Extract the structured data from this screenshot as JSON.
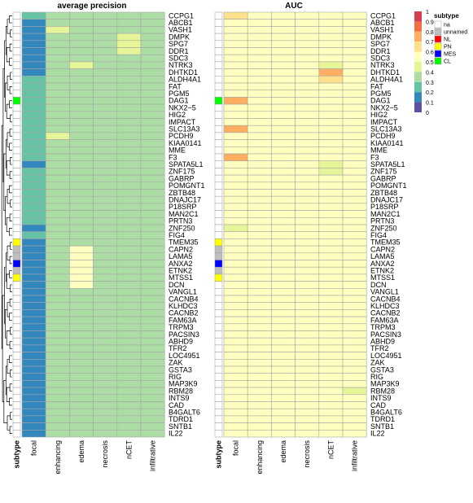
{
  "chart_data": {
    "type": "heatmap",
    "panels": [
      {
        "title": "average precision",
        "columns": [
          "focal",
          "enhancing",
          "edema",
          "necrosis",
          "nCET",
          "infiltrative"
        ],
        "values": [
          [
            0.25,
            0.38,
            0.38,
            0.38,
            0.38,
            0.38
          ],
          [
            0.1,
            0.38,
            0.38,
            0.38,
            0.38,
            0.38
          ],
          [
            0.1,
            0.42,
            0.38,
            0.38,
            0.38,
            0.38
          ],
          [
            0.1,
            0.38,
            0.38,
            0.38,
            0.42,
            0.38
          ],
          [
            0.1,
            0.38,
            0.38,
            0.38,
            0.45,
            0.38
          ],
          [
            0.1,
            0.38,
            0.38,
            0.38,
            0.42,
            0.38
          ],
          [
            0.1,
            0.38,
            0.38,
            0.38,
            0.38,
            0.38
          ],
          [
            0.1,
            0.38,
            0.45,
            0.32,
            0.38,
            0.38
          ],
          [
            0.1,
            0.32,
            0.38,
            0.38,
            0.38,
            0.38
          ],
          [
            0.25,
            0.38,
            0.38,
            0.38,
            0.38,
            0.38
          ],
          [
            0.25,
            0.38,
            0.38,
            0.38,
            0.38,
            0.38
          ],
          [
            0.25,
            0.38,
            0.38,
            0.38,
            0.38,
            0.38
          ],
          [
            0.25,
            0.38,
            0.38,
            0.38,
            0.38,
            0.38
          ],
          [
            0.25,
            0.38,
            0.38,
            0.38,
            0.38,
            0.38
          ],
          [
            0.25,
            0.38,
            0.38,
            0.38,
            0.38,
            0.38
          ],
          [
            0.25,
            0.38,
            0.38,
            0.38,
            0.38,
            0.38
          ],
          [
            0.25,
            0.38,
            0.38,
            0.38,
            0.38,
            0.38
          ],
          [
            0.25,
            0.42,
            0.38,
            0.38,
            0.38,
            0.38
          ],
          [
            0.25,
            0.38,
            0.38,
            0.38,
            0.38,
            0.38
          ],
          [
            0.25,
            0.38,
            0.38,
            0.38,
            0.38,
            0.38
          ],
          [
            0.25,
            0.38,
            0.38,
            0.38,
            0.38,
            0.38
          ],
          [
            0.1,
            0.38,
            0.38,
            0.38,
            0.38,
            0.38
          ],
          [
            0.25,
            0.38,
            0.38,
            0.38,
            0.38,
            0.38
          ],
          [
            0.25,
            0.38,
            0.38,
            0.38,
            0.38,
            0.38
          ],
          [
            0.25,
            0.38,
            0.38,
            0.38,
            0.38,
            0.38
          ],
          [
            0.25,
            0.38,
            0.38,
            0.38,
            0.38,
            0.38
          ],
          [
            0.25,
            0.38,
            0.38,
            0.38,
            0.38,
            0.38
          ],
          [
            0.25,
            0.38,
            0.38,
            0.38,
            0.38,
            0.38
          ],
          [
            0.25,
            0.38,
            0.38,
            0.38,
            0.38,
            0.38
          ],
          [
            0.25,
            0.38,
            0.38,
            0.32,
            0.38,
            0.38
          ],
          [
            0.1,
            0.38,
            0.38,
            0.38,
            0.38,
            0.38
          ],
          [
            0.25,
            0.38,
            0.38,
            0.38,
            0.38,
            0.38
          ],
          [
            0.1,
            0.38,
            0.38,
            0.32,
            0.38,
            0.38
          ],
          [
            0.1,
            0.38,
            0.52,
            0.38,
            0.38,
            0.38
          ],
          [
            0.1,
            0.38,
            0.52,
            0.32,
            0.38,
            0.38
          ],
          [
            0.1,
            0.38,
            0.52,
            0.38,
            0.38,
            0.38
          ],
          [
            0.1,
            0.38,
            0.52,
            0.38,
            0.38,
            0.38
          ],
          [
            0.1,
            0.38,
            0.52,
            0.38,
            0.38,
            0.38
          ],
          [
            0.1,
            0.38,
            0.52,
            0.38,
            0.38,
            0.38
          ],
          [
            0.1,
            0.38,
            0.38,
            0.38,
            0.38,
            0.38
          ],
          [
            0.1,
            0.38,
            0.38,
            0.38,
            0.38,
            0.38
          ],
          [
            0.1,
            0.38,
            0.38,
            0.38,
            0.38,
            0.38
          ],
          [
            0.1,
            0.38,
            0.38,
            0.38,
            0.38,
            0.38
          ],
          [
            0.1,
            0.38,
            0.38,
            0.38,
            0.38,
            0.38
          ],
          [
            0.1,
            0.38,
            0.38,
            0.38,
            0.38,
            0.38
          ],
          [
            0.1,
            0.38,
            0.38,
            0.38,
            0.38,
            0.38
          ],
          [
            0.1,
            0.38,
            0.38,
            0.32,
            0.38,
            0.38
          ],
          [
            0.1,
            0.38,
            0.38,
            0.32,
            0.38,
            0.38
          ],
          [
            0.1,
            0.38,
            0.38,
            0.32,
            0.38,
            0.38
          ],
          [
            0.1,
            0.38,
            0.38,
            0.38,
            0.38,
            0.38
          ],
          [
            0.1,
            0.38,
            0.38,
            0.38,
            0.38,
            0.38
          ],
          [
            0.1,
            0.38,
            0.38,
            0.38,
            0.38,
            0.38
          ],
          [
            0.1,
            0.38,
            0.38,
            0.38,
            0.38,
            0.38
          ],
          [
            0.1,
            0.38,
            0.38,
            0.38,
            0.38,
            0.38
          ],
          [
            0.1,
            0.38,
            0.38,
            0.38,
            0.38,
            0.38
          ],
          [
            0.1,
            0.38,
            0.38,
            0.38,
            0.38,
            0.38
          ],
          [
            0.1,
            0.38,
            0.38,
            0.38,
            0.38,
            0.38
          ],
          [
            0.1,
            0.38,
            0.38,
            0.38,
            0.38,
            0.38
          ],
          [
            0.1,
            0.38,
            0.38,
            0.38,
            0.38,
            0.38
          ],
          [
            0.1,
            0.38,
            0.38,
            0.38,
            0.38,
            0.38
          ]
        ]
      },
      {
        "title": "AUC",
        "columns": [
          "focal",
          "enhancing",
          "edema",
          "necrosis",
          "nCET",
          "infiltrative"
        ],
        "values": [
          [
            0.62,
            0.58,
            0.58,
            0.55,
            0.58,
            0.55
          ],
          [
            0.58,
            0.55,
            0.55,
            0.55,
            0.58,
            0.55
          ],
          [
            0.55,
            0.55,
            0.55,
            0.55,
            0.55,
            0.55
          ],
          [
            0.58,
            0.55,
            0.55,
            0.55,
            0.58,
            0.55
          ],
          [
            0.58,
            0.55,
            0.55,
            0.55,
            0.58,
            0.55
          ],
          [
            0.55,
            0.55,
            0.55,
            0.55,
            0.55,
            0.55
          ],
          [
            0.58,
            0.55,
            0.55,
            0.55,
            0.58,
            0.55
          ],
          [
            0.55,
            0.55,
            0.55,
            0.55,
            0.45,
            0.55
          ],
          [
            0.58,
            0.55,
            0.55,
            0.55,
            0.72,
            0.55
          ],
          [
            0.55,
            0.55,
            0.55,
            0.55,
            0.62,
            0.55
          ],
          [
            0.55,
            0.55,
            0.55,
            0.55,
            0.55,
            0.55
          ],
          [
            0.55,
            0.55,
            0.55,
            0.55,
            0.55,
            0.55
          ],
          [
            0.72,
            0.55,
            0.55,
            0.55,
            0.58,
            0.55
          ],
          [
            0.55,
            0.55,
            0.55,
            0.55,
            0.55,
            0.55
          ],
          [
            0.55,
            0.55,
            0.55,
            0.55,
            0.58,
            0.55
          ],
          [
            0.55,
            0.55,
            0.55,
            0.55,
            0.55,
            0.55
          ],
          [
            0.72,
            0.55,
            0.55,
            0.55,
            0.55,
            0.55
          ],
          [
            0.55,
            0.55,
            0.55,
            0.55,
            0.58,
            0.55
          ],
          [
            0.55,
            0.55,
            0.55,
            0.55,
            0.55,
            0.55
          ],
          [
            0.55,
            0.55,
            0.55,
            0.55,
            0.55,
            0.55
          ],
          [
            0.72,
            0.55,
            0.55,
            0.55,
            0.55,
            0.55
          ],
          [
            0.55,
            0.55,
            0.55,
            0.55,
            0.45,
            0.55
          ],
          [
            0.55,
            0.55,
            0.55,
            0.55,
            0.45,
            0.55
          ],
          [
            0.55,
            0.55,
            0.55,
            0.55,
            0.58,
            0.55
          ],
          [
            0.55,
            0.55,
            0.55,
            0.55,
            0.58,
            0.55
          ],
          [
            0.55,
            0.55,
            0.55,
            0.55,
            0.55,
            0.55
          ],
          [
            0.55,
            0.55,
            0.55,
            0.55,
            0.55,
            0.55
          ],
          [
            0.55,
            0.55,
            0.55,
            0.55,
            0.58,
            0.55
          ],
          [
            0.55,
            0.55,
            0.55,
            0.55,
            0.58,
            0.55
          ],
          [
            0.55,
            0.55,
            0.55,
            0.55,
            0.58,
            0.55
          ],
          [
            0.45,
            0.55,
            0.55,
            0.55,
            0.58,
            0.55
          ],
          [
            0.55,
            0.55,
            0.55,
            0.55,
            0.55,
            0.55
          ],
          [
            0.55,
            0.55,
            0.55,
            0.55,
            0.55,
            0.55
          ],
          [
            0.55,
            0.55,
            0.58,
            0.55,
            0.55,
            0.55
          ],
          [
            0.55,
            0.55,
            0.58,
            0.55,
            0.55,
            0.55
          ],
          [
            0.55,
            0.55,
            0.58,
            0.55,
            0.55,
            0.55
          ],
          [
            0.55,
            0.55,
            0.58,
            0.55,
            0.55,
            0.55
          ],
          [
            0.55,
            0.55,
            0.58,
            0.55,
            0.55,
            0.55
          ],
          [
            0.55,
            0.55,
            0.58,
            0.55,
            0.55,
            0.55
          ],
          [
            0.55,
            0.55,
            0.55,
            0.55,
            0.55,
            0.55
          ],
          [
            0.55,
            0.55,
            0.55,
            0.55,
            0.55,
            0.55
          ],
          [
            0.55,
            0.55,
            0.55,
            0.55,
            0.55,
            0.55
          ],
          [
            0.55,
            0.55,
            0.55,
            0.55,
            0.55,
            0.55
          ],
          [
            0.55,
            0.55,
            0.55,
            0.55,
            0.55,
            0.55
          ],
          [
            0.55,
            0.55,
            0.55,
            0.58,
            0.55,
            0.55
          ],
          [
            0.55,
            0.55,
            0.55,
            0.55,
            0.55,
            0.55
          ],
          [
            0.55,
            0.55,
            0.55,
            0.58,
            0.55,
            0.55
          ],
          [
            0.55,
            0.55,
            0.55,
            0.58,
            0.55,
            0.55
          ],
          [
            0.55,
            0.55,
            0.55,
            0.58,
            0.55,
            0.55
          ],
          [
            0.55,
            0.55,
            0.55,
            0.58,
            0.55,
            0.55
          ],
          [
            0.55,
            0.55,
            0.55,
            0.58,
            0.55,
            0.55
          ],
          [
            0.55,
            0.55,
            0.55,
            0.55,
            0.55,
            0.55
          ],
          [
            0.55,
            0.58,
            0.55,
            0.55,
            0.55,
            0.55
          ],
          [
            0.55,
            0.55,
            0.55,
            0.55,
            0.55,
            0.45
          ],
          [
            0.55,
            0.58,
            0.55,
            0.55,
            0.55,
            0.55
          ],
          [
            0.55,
            0.58,
            0.55,
            0.55,
            0.55,
            0.55
          ],
          [
            0.55,
            0.58,
            0.55,
            0.55,
            0.55,
            0.55
          ],
          [
            0.55,
            0.55,
            0.55,
            0.55,
            0.55,
            0.55
          ],
          [
            0.55,
            0.55,
            0.55,
            0.55,
            0.55,
            0.55
          ],
          [
            0.55,
            0.55,
            0.55,
            0.55,
            0.55,
            0.55
          ]
        ]
      }
    ],
    "rows": [
      "CCPG1",
      "ABCB1",
      "VASH1",
      "DMPK",
      "SPG7",
      "DDR1",
      "SDC3",
      "NTRK3",
      "DHTKD1",
      "ALDH4A1",
      "FAT",
      "PGM5",
      "DAG1",
      "NKX2−5",
      "HIG2",
      "IMPACT",
      "SLC13A3",
      "PCDH9",
      "KIAA0141",
      "MME",
      "F3",
      "SPATA5L1",
      "ZNF175",
      "GABRP",
      "POMGNT1",
      "ZBTB48",
      "DNAJC17",
      "P18SRP",
      "MAN2C1",
      "PRTN3",
      "ZNF250",
      "FIG4",
      "TMEM35",
      "CAPN2",
      "LAMA5",
      "ANXA2",
      "ETNK2",
      "MTSS1",
      "DCN",
      "VANGL1",
      "CACNB4",
      "KLHDC3",
      "CACNB2",
      "FAM63A",
      "TRPM3",
      "PACSIN3",
      "ABHD9",
      "TFR2",
      "LOC4951",
      "ZAK",
      "GSTA3",
      "RIG",
      "MAP3K9",
      "RBM28",
      "INTS9",
      "CAD",
      "B4GALT6",
      "TDRD1",
      "SNTB1",
      "IL22"
    ],
    "subtype_label": "subtype",
    "subtypes": [
      "na",
      "na",
      "na",
      "na",
      "na",
      "na",
      "na",
      "na",
      "na",
      "na",
      "na",
      "na",
      "CL",
      "na",
      "na",
      "na",
      "na",
      "na",
      "na",
      "na",
      "na",
      "na",
      "na",
      "na",
      "na",
      "na",
      "na",
      "na",
      "na",
      "na",
      "na",
      "na",
      "PN",
      "unnamed",
      "unnamed",
      "MES",
      "unnamed",
      "PN",
      "na",
      "na",
      "na",
      "na",
      "na",
      "na",
      "na",
      "na",
      "na",
      "na",
      "na",
      "na",
      "na",
      "na",
      "na",
      "na",
      "na",
      "na",
      "na",
      "na",
      "na",
      "na"
    ],
    "color_scale": {
      "range": [
        0,
        1
      ],
      "ticks": [
        "1",
        "0.9",
        "0.8",
        "0.7",
        "0.6",
        "0.5",
        "0.4",
        "0.3",
        "0.2",
        "0.1",
        "0"
      ],
      "colors": [
        "#5e4fa2",
        "#3288bd",
        "#66c2a5",
        "#abdda4",
        "#e6f598",
        "#ffffbf",
        "#fee08b",
        "#fdae61",
        "#f46d43",
        "#d53e4f"
      ]
    },
    "legend": {
      "title": "subtype",
      "position": "top-right",
      "items": [
        {
          "label": "na",
          "color": "#ffffff"
        },
        {
          "label": "unnamed",
          "color": "#bebebe"
        },
        {
          "label": "NL",
          "color": "#ff0000"
        },
        {
          "label": "PN",
          "color": "#ffff00"
        },
        {
          "label": "MES",
          "color": "#0000ff"
        },
        {
          "label": "CL",
          "color": "#00ff00"
        }
      ]
    },
    "grid": true
  }
}
